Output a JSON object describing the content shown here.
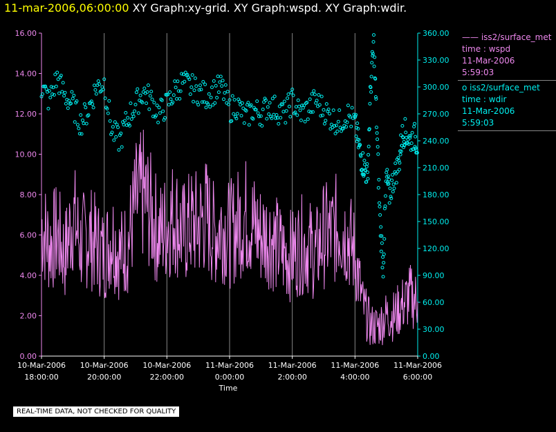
{
  "header": {
    "time": "11-mar-2006,06:00:00",
    "graphs": " XY Graph:xy-grid.  XY Graph:wspd.  XY Graph:wdir."
  },
  "quality_notice": "REAL-TIME DATA, NOT CHECKED FOR QUALITY",
  "legend": {
    "items": [
      {
        "marker": "——",
        "lines": [
          "iss2/surface_met",
          "time : wspd",
          "11-Mar-2006",
          "5:59:03"
        ],
        "color": "#ee88ee"
      },
      {
        "marker": "o",
        "lines": [
          "iss2/surface_met",
          "time : wdir",
          "11-Mar-2006",
          "5:59:03"
        ],
        "color": "#00f0f0"
      }
    ]
  },
  "colors": {
    "axis": "#ee88ee",
    "right_axis": "#00f0f0",
    "grid": "#888888",
    "wspd": "#ee88ee",
    "wdir": "#00f0f0"
  },
  "chart_data": {
    "type": "line",
    "xlabel": "Time",
    "x_ticks": [
      {
        "l1": "10-Mar-2006",
        "l2": "18:00:00",
        "h": 0
      },
      {
        "l1": "10-Mar-2006",
        "l2": "20:00:00",
        "h": 2
      },
      {
        "l1": "10-Mar-2006",
        "l2": "22:00:00",
        "h": 4
      },
      {
        "l1": "11-Mar-2006",
        "l2": "0:00:00",
        "h": 6
      },
      {
        "l1": "11-Mar-2006",
        "l2": "2:00:00",
        "h": 8
      },
      {
        "l1": "11-Mar-2006",
        "l2": "4:00:00",
        "h": 10
      },
      {
        "l1": "11-Mar-2006",
        "l2": "6:00:00",
        "h": 12
      }
    ],
    "xlim": [
      0,
      12
    ],
    "y_left": {
      "ticks": [
        "0.00",
        "2.00",
        "4.00",
        "6.00",
        "8.00",
        "10.00",
        "12.00",
        "14.00",
        "16.00"
      ],
      "lim": [
        0,
        16
      ]
    },
    "y_right": {
      "ticks": [
        "0.00",
        "30.00",
        "60.00",
        "90.00",
        "120.00",
        "150.00",
        "180.00",
        "210.00",
        "240.00",
        "270.00",
        "300.00",
        "330.00",
        "360.00"
      ],
      "lim": [
        0,
        360
      ]
    },
    "grid": "vertical",
    "series": [
      {
        "key": "wspd",
        "axis": "left",
        "x": [
          0,
          0.25,
          0.5,
          0.75,
          1,
          1.25,
          1.5,
          1.75,
          2,
          2.25,
          2.5,
          2.75,
          3,
          3.25,
          3.5,
          3.75,
          4,
          4.25,
          4.5,
          4.75,
          5,
          5.25,
          5.5,
          5.75,
          6,
          6.25,
          6.5,
          6.75,
          7,
          7.25,
          7.5,
          7.75,
          8,
          8.25,
          8.5,
          8.75,
          9,
          9.25,
          9.5,
          9.75,
          10,
          10.25,
          10.5,
          10.75,
          11,
          11.25,
          11.5,
          11.75,
          12
        ],
        "y": [
          6.5,
          5.5,
          6.0,
          5.0,
          7.0,
          5.5,
          6.0,
          5.5,
          5.0,
          6.0,
          5.0,
          5.5,
          7.5,
          8.0,
          7.0,
          6.0,
          6.5,
          7.0,
          6.0,
          6.5,
          6.5,
          7.0,
          6.0,
          6.5,
          6.0,
          6.5,
          7.0,
          6.5,
          6.0,
          6.0,
          5.5,
          5.0,
          5.0,
          5.5,
          5.5,
          5.0,
          6.0,
          6.0,
          6.5,
          6.0,
          5.0,
          2.5,
          1.5,
          1.5,
          2.0,
          2.0,
          2.5,
          3.0,
          2.7
        ]
      },
      {
        "key": "wdir",
        "axis": "right",
        "x": [
          0,
          0.25,
          0.5,
          0.75,
          1,
          1.25,
          1.5,
          1.75,
          2,
          2.25,
          2.5,
          2.75,
          3,
          3.25,
          3.5,
          3.75,
          4,
          4.25,
          4.5,
          4.75,
          5,
          5.25,
          5.5,
          5.75,
          6,
          6.25,
          6.5,
          6.75,
          7,
          7.25,
          7.5,
          7.75,
          8,
          8.25,
          8.5,
          8.75,
          9,
          9.25,
          9.5,
          9.75,
          10,
          10.1,
          10.2,
          10.3,
          10.4,
          10.5,
          10.6,
          10.7,
          10.8,
          10.9,
          11,
          11.1,
          11.25,
          11.4,
          11.5,
          11.6,
          11.75,
          11.9,
          12
        ],
        "y": [
          300,
          285,
          310,
          290,
          280,
          260,
          275,
          300,
          305,
          250,
          240,
          265,
          280,
          295,
          285,
          270,
          280,
          295,
          305,
          300,
          295,
          290,
          295,
          300,
          275,
          280,
          265,
          275,
          270,
          280,
          275,
          270,
          285,
          270,
          275,
          285,
          275,
          265,
          260,
          270,
          260,
          240,
          220,
          210,
          200,
          300,
          350,
          250,
          150,
          100,
          200,
          180,
          200,
          215,
          245,
          250,
          240,
          245,
          235
        ]
      }
    ]
  }
}
